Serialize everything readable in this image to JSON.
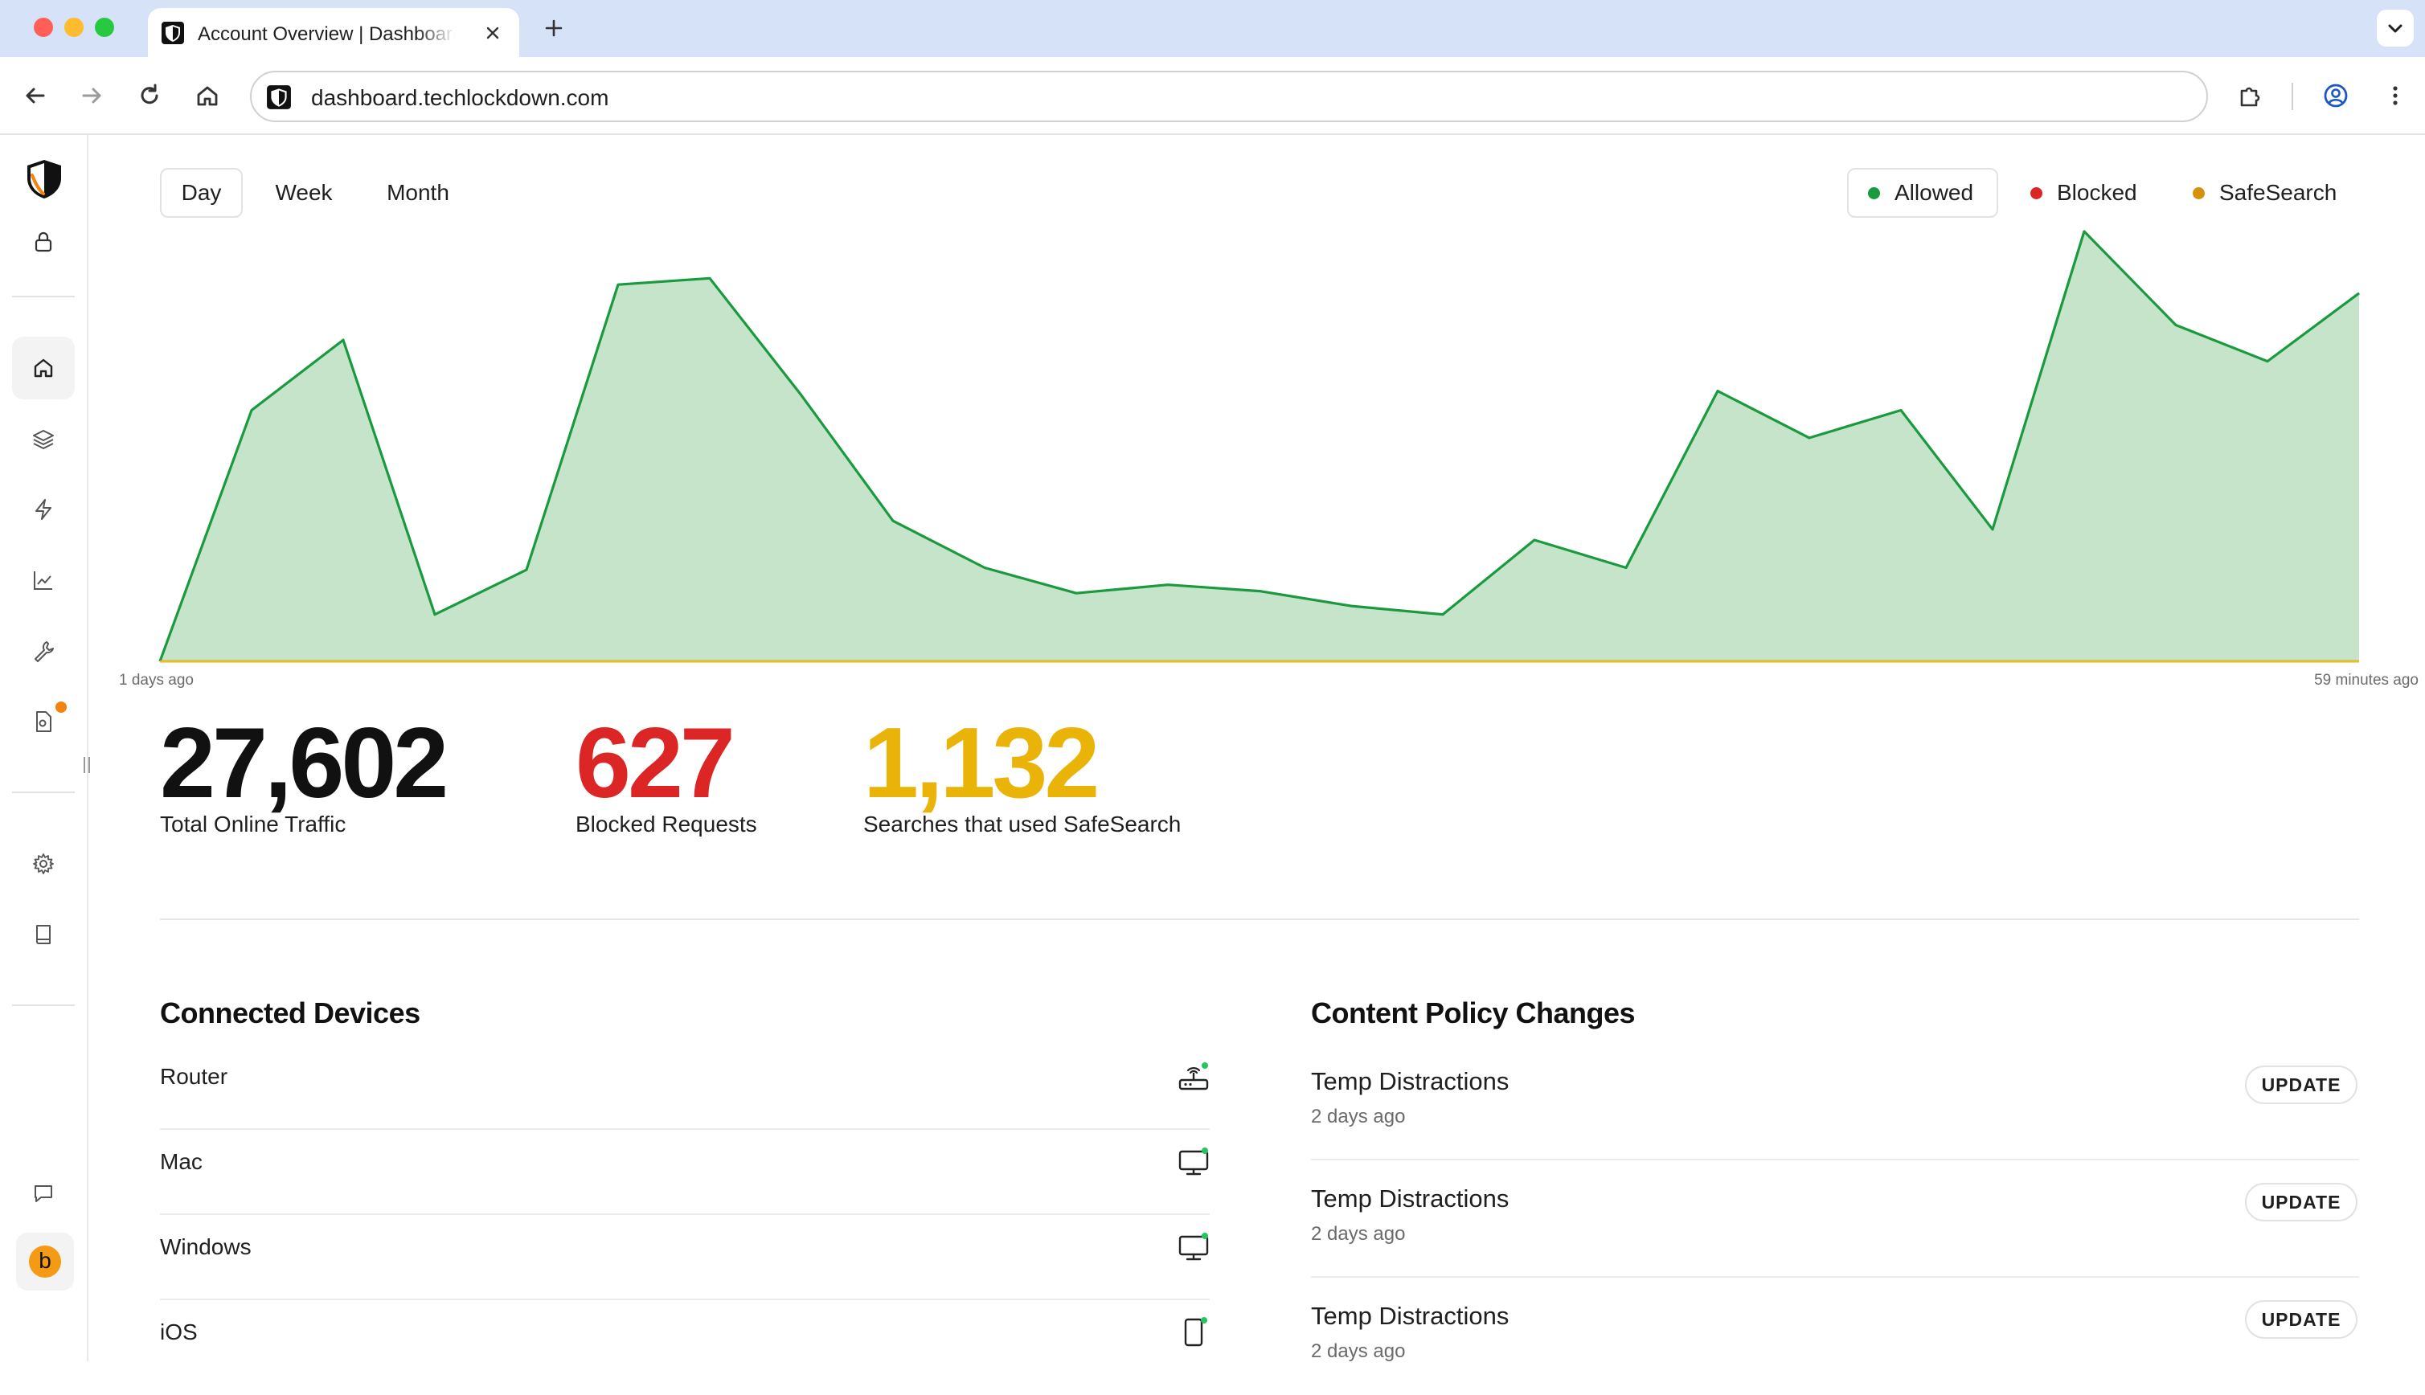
{
  "browser": {
    "tab_title": "Account Overview | Dashboard",
    "url": "dashboard.techlockdown.com"
  },
  "icons": {
    "favicon": "shield-icon",
    "back": "arrow-left-icon",
    "forward": "arrow-right-icon",
    "reload": "reload-icon",
    "home": "home-icon",
    "extensions": "puzzle-icon",
    "profile": "profile-icon",
    "menu": "kebab-menu-icon"
  },
  "sidebar": {
    "items": [
      {
        "name": "lock",
        "icon": "lock-icon"
      },
      {
        "name": "home",
        "icon": "home-icon",
        "active": true
      },
      {
        "name": "layers",
        "icon": "layers-icon"
      },
      {
        "name": "activity",
        "icon": "lightning-icon"
      },
      {
        "name": "analytics",
        "icon": "line-chart-icon"
      },
      {
        "name": "tools",
        "icon": "wrench-icon"
      },
      {
        "name": "reports",
        "icon": "document-icon",
        "badge": true
      },
      {
        "name": "settings",
        "icon": "gear-icon"
      },
      {
        "name": "guides",
        "icon": "book-icon"
      },
      {
        "name": "feedback",
        "icon": "chat-icon"
      }
    ],
    "avatar_letter": "b"
  },
  "filters": {
    "ranges": [
      "Day",
      "Week",
      "Month"
    ],
    "active_range": "Day",
    "legend": [
      {
        "label": "Allowed",
        "color": "#1a9a3e",
        "active": true
      },
      {
        "label": "Blocked",
        "color": "#dc2626"
      },
      {
        "label": "SafeSearch",
        "color": "#d4920c"
      }
    ]
  },
  "chart_data": {
    "type": "area",
    "x_start_label": "1 days ago",
    "x_end_label": "59 minutes ago",
    "series": [
      {
        "name": "Allowed",
        "color": "#1a9a3e",
        "fill": "#c6e4c9",
        "values": [
          0,
          590,
          755,
          110,
          215,
          885,
          900,
          625,
          330,
          220,
          160,
          180,
          165,
          130,
          110,
          285,
          220,
          635,
          525,
          590,
          310,
          1010,
          790,
          705,
          865
        ]
      },
      {
        "name": "Blocked",
        "color": "#dc2626",
        "values": [
          0,
          0,
          0,
          0,
          0,
          0,
          0,
          0,
          0,
          0,
          0,
          0,
          0,
          0,
          0,
          0,
          0,
          0,
          0,
          0,
          0,
          0,
          0,
          0,
          0
        ]
      },
      {
        "name": "SafeSearch",
        "color": "#e8c20d",
        "values": [
          0,
          0,
          0,
          0,
          0,
          0,
          0,
          0,
          0,
          0,
          0,
          0,
          0,
          0,
          0,
          0,
          0,
          0,
          0,
          0,
          0,
          0,
          0,
          0,
          0
        ]
      }
    ],
    "ylim": [
      0,
      1010
    ]
  },
  "stats": [
    {
      "value": "27,602",
      "label": "Total Online Traffic",
      "color": "#111111"
    },
    {
      "value": "627",
      "label": "Blocked Requests",
      "color": "#dc2626"
    },
    {
      "value": "1,132",
      "label": "Searches that used SafeSearch",
      "color": "#eab308"
    }
  ],
  "devices": {
    "title": "Connected Devices",
    "items": [
      {
        "name": "Router",
        "icon": "router-icon"
      },
      {
        "name": "Mac",
        "icon": "monitor-icon"
      },
      {
        "name": "Windows",
        "icon": "monitor-icon"
      },
      {
        "name": "iOS",
        "icon": "phone-icon"
      }
    ],
    "status_color": "#22c55e"
  },
  "policies": {
    "title": "Content Policy Changes",
    "items": [
      {
        "name": "Temp Distractions",
        "time": "2 days ago",
        "action": "UPDATE"
      },
      {
        "name": "Temp Distractions",
        "time": "2 days ago",
        "action": "UPDATE"
      },
      {
        "name": "Temp Distractions",
        "time": "2 days ago",
        "action": "UPDATE"
      }
    ]
  }
}
